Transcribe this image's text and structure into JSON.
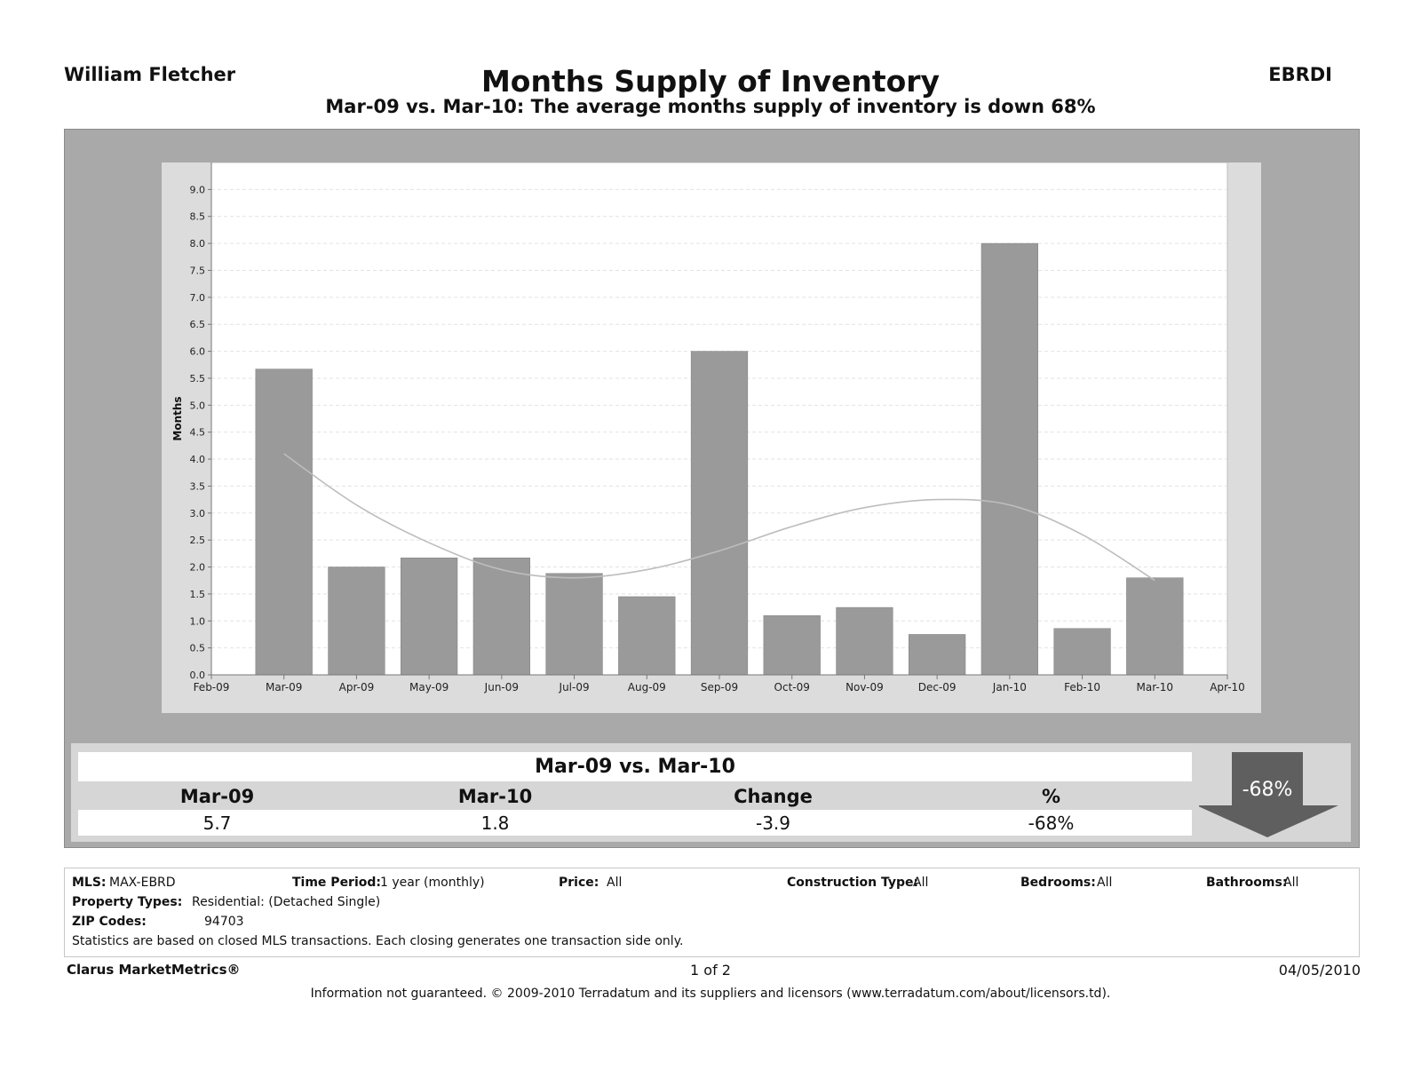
{
  "header": {
    "agent": "William Fletcher",
    "title": "Months Supply of Inventory",
    "subtitle": "Mar-09 vs. Mar-10:  The average months supply of inventory is down 68%",
    "mls_id": "EBRDI"
  },
  "chart_data": {
    "type": "bar",
    "ylabel": "Months",
    "ylim": [
      0,
      9.5
    ],
    "yticks": [
      "0.0",
      "0.5",
      "1.0",
      "1.5",
      "2.0",
      "2.5",
      "3.0",
      "3.5",
      "4.0",
      "4.5",
      "5.0",
      "5.5",
      "6.0",
      "6.5",
      "7.0",
      "7.5",
      "8.0",
      "8.5",
      "9.0"
    ],
    "xticks": [
      "Feb-09",
      "Mar-09",
      "Apr-09",
      "May-09",
      "Jun-09",
      "Jul-09",
      "Aug-09",
      "Sep-09",
      "Oct-09",
      "Nov-09",
      "Dec-09",
      "Jan-10",
      "Feb-10",
      "Mar-10",
      "Apr-10"
    ],
    "categories": [
      "Mar-09",
      "Apr-09",
      "May-09",
      "Jun-09",
      "Jul-09",
      "Aug-09",
      "Sep-09",
      "Oct-09",
      "Nov-09",
      "Dec-09",
      "Jan-10",
      "Feb-10",
      "Mar-10"
    ],
    "values": [
      5.67,
      2.0,
      2.17,
      2.17,
      1.88,
      1.45,
      6.0,
      1.1,
      1.25,
      0.75,
      8.0,
      0.86,
      1.8
    ],
    "trend_values": [
      4.1,
      3.15,
      2.45,
      1.95,
      1.8,
      1.95,
      2.3,
      2.75,
      3.1,
      3.25,
      3.15,
      2.6,
      1.75
    ],
    "grid": true,
    "bar_color": "#9a9a9a",
    "trend_color": "#bdbdbd"
  },
  "summary": {
    "title": "Mar-09 vs. Mar-10",
    "headers": [
      "Mar-09",
      "Mar-10",
      "Change",
      "%"
    ],
    "values": [
      "5.7",
      "1.8",
      "-3.9",
      "-68%"
    ],
    "badge": "-68%",
    "badge_direction": "down"
  },
  "info": {
    "mls_label": "MLS:",
    "mls_value": "MAX-EBRD",
    "period_label": "Time Period:",
    "period_value": "1 year (monthly)",
    "price_label": "Price:",
    "price_value": "All",
    "construction_label": "Construction Type:",
    "construction_value": "All",
    "bedrooms_label": "Bedrooms:",
    "bedrooms_value": "All",
    "bathrooms_label": "Bathrooms:",
    "bathrooms_value": "All",
    "property_label": "Property Types:",
    "property_value": "Residential: (Detached Single)",
    "zip_label": "ZIP Codes:",
    "zip_value": "94703",
    "note": "Statistics are based on closed MLS transactions.  Each closing generates one transaction side only."
  },
  "footer": {
    "brand": "Clarus MarketMetrics®",
    "page": "1 of 2",
    "date": "04/05/2010",
    "disclaimer": "Information not guaranteed.  © 2009-2010 Terradatum and its suppliers and licensors (www.terradatum.com/about/licensors.td)."
  }
}
